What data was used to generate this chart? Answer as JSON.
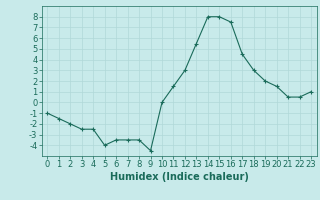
{
  "x": [
    0,
    1,
    2,
    3,
    4,
    5,
    6,
    7,
    8,
    9,
    10,
    11,
    12,
    13,
    14,
    15,
    16,
    17,
    18,
    19,
    20,
    21,
    22,
    23
  ],
  "y": [
    -1,
    -1.5,
    -2,
    -2.5,
    -2.5,
    -4,
    -3.5,
    -3.5,
    -3.5,
    -4.5,
    0,
    1.5,
    3,
    5.5,
    8,
    8,
    7.5,
    4.5,
    3,
    2,
    1.5,
    0.5,
    0.5,
    1
  ],
  "line_color": "#1a6b5a",
  "marker": "+",
  "marker_size": 3,
  "bg_color": "#c8eaea",
  "grid_color": "#b0d8d8",
  "xlabel": "Humidex (Indice chaleur)",
  "xlabel_fontsize": 7,
  "tick_fontsize": 6,
  "ylim": [
    -5,
    9
  ],
  "xlim": [
    -0.5,
    23.5
  ],
  "yticks": [
    -4,
    -3,
    -2,
    -1,
    0,
    1,
    2,
    3,
    4,
    5,
    6,
    7,
    8
  ],
  "xticks": [
    0,
    1,
    2,
    3,
    4,
    5,
    6,
    7,
    8,
    9,
    10,
    11,
    12,
    13,
    14,
    15,
    16,
    17,
    18,
    19,
    20,
    21,
    22,
    23
  ]
}
